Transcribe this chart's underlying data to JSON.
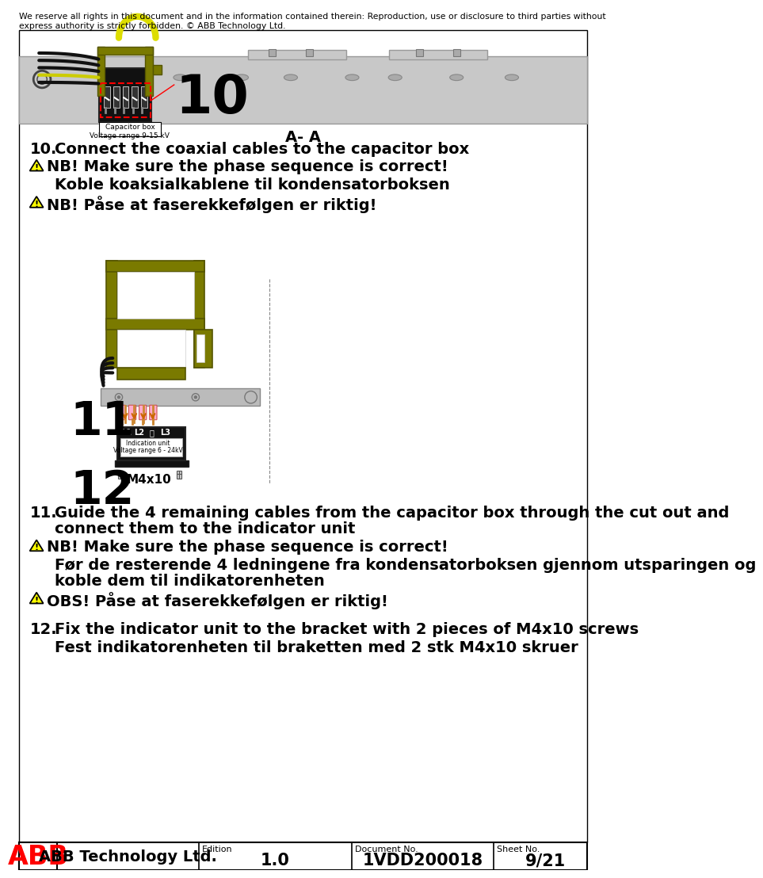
{
  "background_color": "#ffffff",
  "header_text": "We reserve all rights in this document and in the information contained therein: Reproduction, use or disclosure to third parties without\nexpress authority is strictly forbidden. © ABB Technology Ltd.",
  "footer": {
    "company": "ABB Technology Ltd.",
    "edition_label": "Edition",
    "edition_value": "1.0",
    "doc_label": "Document No.",
    "doc_value": "1VDD200018",
    "sheet_label": "Sheet No.",
    "sheet_value": "9/21"
  },
  "section10_number": "10.",
  "section10_title": "Connect the coaxial cables to the capacitor box",
  "section10_nb": "NB! Make sure the phase sequence is correct!",
  "section10_norwegian1": "Koble koaksialkablene til kondensatorboksen",
  "section10_norwegian2": "NB! Påse at faserekkefølgen er riktig!",
  "diagram1_label": "A- A",
  "diagram1_number": "10",
  "diagram1_capacitor_label": "Capacitor box\nVoltage range 9-15 kV",
  "section11_number": "11.",
  "section11_title_line1": "Guide the 4 remaining cables from the capacitor box through the cut out and",
  "section11_title_line2": "connect them to the indicator unit",
  "section11_nb": "NB! Make sure the phase sequence is correct!",
  "section11_norwegian1_line1": "Før de resterende 4 ledningene fra kondensatorboksen gjennom utsparingen og",
  "section11_norwegian1_line2": "koble dem til indikatorenheten",
  "section11_norwegian2": "OBS! Påse at faserekkefølgen er riktig!",
  "section12_number": "12.",
  "section12_title": "Fix the indicator unit to the bracket with 2 pieces of M4x10 screws",
  "section12_norwegian": "Fest indikatorenheten til braketten med 2 stk M4x10 skruer",
  "diagram2_number": "11",
  "diagram2_number2": "12",
  "diagram2_indicator_label1": "Indication unit",
  "diagram2_indicator_label2": "Voltage range 6 - 24kV",
  "diagram2_m4x10": "M4x10",
  "diagram2_l1": "L1",
  "diagram2_l2": "L2",
  "diagram2_gnd": "⏚",
  "diagram2_l3": "L3"
}
